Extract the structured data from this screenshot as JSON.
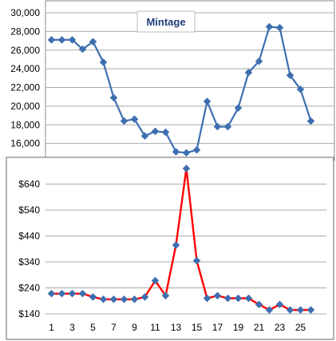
{
  "chart_data": [
    {
      "type": "line",
      "title": "Mintage",
      "x": [
        1,
        2,
        3,
        4,
        5,
        6,
        7,
        8,
        9,
        10,
        11,
        12,
        13,
        14,
        15,
        16,
        17,
        18,
        19,
        20,
        21,
        22,
        23,
        24,
        25,
        26
      ],
      "series": [
        {
          "values": [
            27100,
            27100,
            27100,
            26100,
            26900,
            24700,
            20900,
            18400,
            18600,
            16800,
            17300,
            17200,
            15100,
            15000,
            15300,
            20500,
            17800,
            17800,
            19800,
            23600,
            24800,
            28500,
            28400,
            23300,
            21800,
            18400
          ],
          "color": "#3d6fb0",
          "marker": "diamond"
        }
      ],
      "ylim": [
        14000,
        30000
      ],
      "yticks": [
        "16,000",
        "18,000",
        "20,000",
        "22,000",
        "24,000",
        "26,000",
        "28,000",
        "30,000"
      ],
      "ytick_values": [
        16000,
        18000,
        20000,
        22000,
        24000,
        26000,
        28000,
        30000
      ],
      "grid": "horizontal"
    },
    {
      "type": "line",
      "title": "",
      "x": [
        1,
        2,
        3,
        4,
        5,
        6,
        7,
        8,
        9,
        10,
        11,
        12,
        13,
        14,
        15,
        16,
        17,
        18,
        19,
        20,
        21,
        22,
        23,
        24,
        25,
        26
      ],
      "xticks": [
        "1",
        "3",
        "5",
        "7",
        "9",
        "11",
        "13",
        "15",
        "17",
        "19",
        "21",
        "23",
        "25"
      ],
      "series": [
        {
          "values": [
            218,
            218,
            218,
            218,
            205,
            196,
            196,
            196,
            196,
            205,
            268,
            210,
            405,
            700,
            345,
            200,
            210,
            200,
            200,
            200,
            176,
            155,
            176,
            155,
            155,
            155
          ],
          "color": "#ff0000",
          "marker": "diamond",
          "marker_color": "#3d6fb0"
        }
      ],
      "ylim": [
        140,
        700
      ],
      "yticks": [
        "$140",
        "$240",
        "$340",
        "$440",
        "$540",
        "$640"
      ],
      "ytick_values": [
        140,
        240,
        340,
        440,
        540,
        640
      ],
      "grid": "horizontal"
    }
  ]
}
